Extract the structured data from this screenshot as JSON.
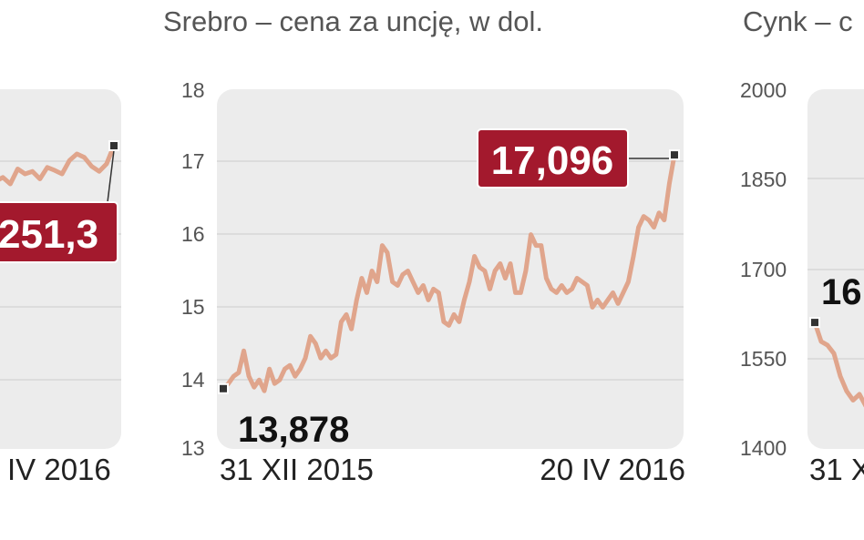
{
  "colors": {
    "panel_bg": "#ececec",
    "grid": "#d7d7d7",
    "line": "#e0a58c",
    "callout_bg": "#a3192d",
    "marker": "#333333"
  },
  "chart_data": [
    {
      "type": "line",
      "partially_visible": true,
      "title": "",
      "x_end_label": "IV 2016",
      "last_value_label": "251,3",
      "y": [
        1180,
        1188,
        1175,
        1205,
        1195,
        1200,
        1185,
        1208,
        1202,
        1195,
        1222,
        1235,
        1228,
        1210,
        1200,
        1215,
        1251.3
      ]
    },
    {
      "type": "line",
      "title": "Srebro – cena za uncję, w dol.",
      "ylim": [
        13,
        18
      ],
      "yticks": [
        "13",
        "14",
        "15",
        "16",
        "17",
        "18"
      ],
      "x_start_label": "31 XII 2015",
      "x_end_label": "20 IV 2016",
      "first_value_label": "13,878",
      "last_value_label": "17,096",
      "grid": true,
      "y": [
        13.88,
        13.95,
        14.05,
        14.1,
        14.4,
        14.05,
        13.9,
        14.0,
        13.85,
        14.15,
        13.95,
        14.0,
        14.15,
        14.2,
        14.05,
        14.15,
        14.3,
        14.6,
        14.5,
        14.3,
        14.4,
        14.3,
        14.35,
        14.8,
        14.9,
        14.7,
        15.1,
        15.4,
        15.2,
        15.5,
        15.35,
        15.85,
        15.75,
        15.35,
        15.3,
        15.45,
        15.5,
        15.35,
        15.2,
        15.3,
        15.1,
        15.25,
        15.2,
        14.8,
        14.75,
        14.9,
        14.8,
        15.1,
        15.35,
        15.7,
        15.55,
        15.5,
        15.25,
        15.5,
        15.6,
        15.4,
        15.6,
        15.2,
        15.2,
        15.5,
        16.0,
        15.85,
        15.85,
        15.4,
        15.25,
        15.2,
        15.3,
        15.2,
        15.25,
        15.4,
        15.35,
        15.3,
        15.0,
        15.1,
        15.0,
        15.1,
        15.2,
        15.05,
        15.2,
        15.35,
        15.7,
        16.1,
        16.25,
        16.2,
        16.1,
        16.3,
        16.2,
        16.7,
        17.096
      ]
    },
    {
      "type": "line",
      "partially_visible": true,
      "title": "Cynk – c",
      "ylim": [
        1400,
        2000
      ],
      "yticks": [
        "1400",
        "1550",
        "1700",
        "1850",
        "2000"
      ],
      "x_start_label": "31 X",
      "first_value_label": "16",
      "y": [
        1610,
        1578,
        1572,
        1558,
        1520,
        1495,
        1480,
        1490,
        1470
      ]
    }
  ]
}
